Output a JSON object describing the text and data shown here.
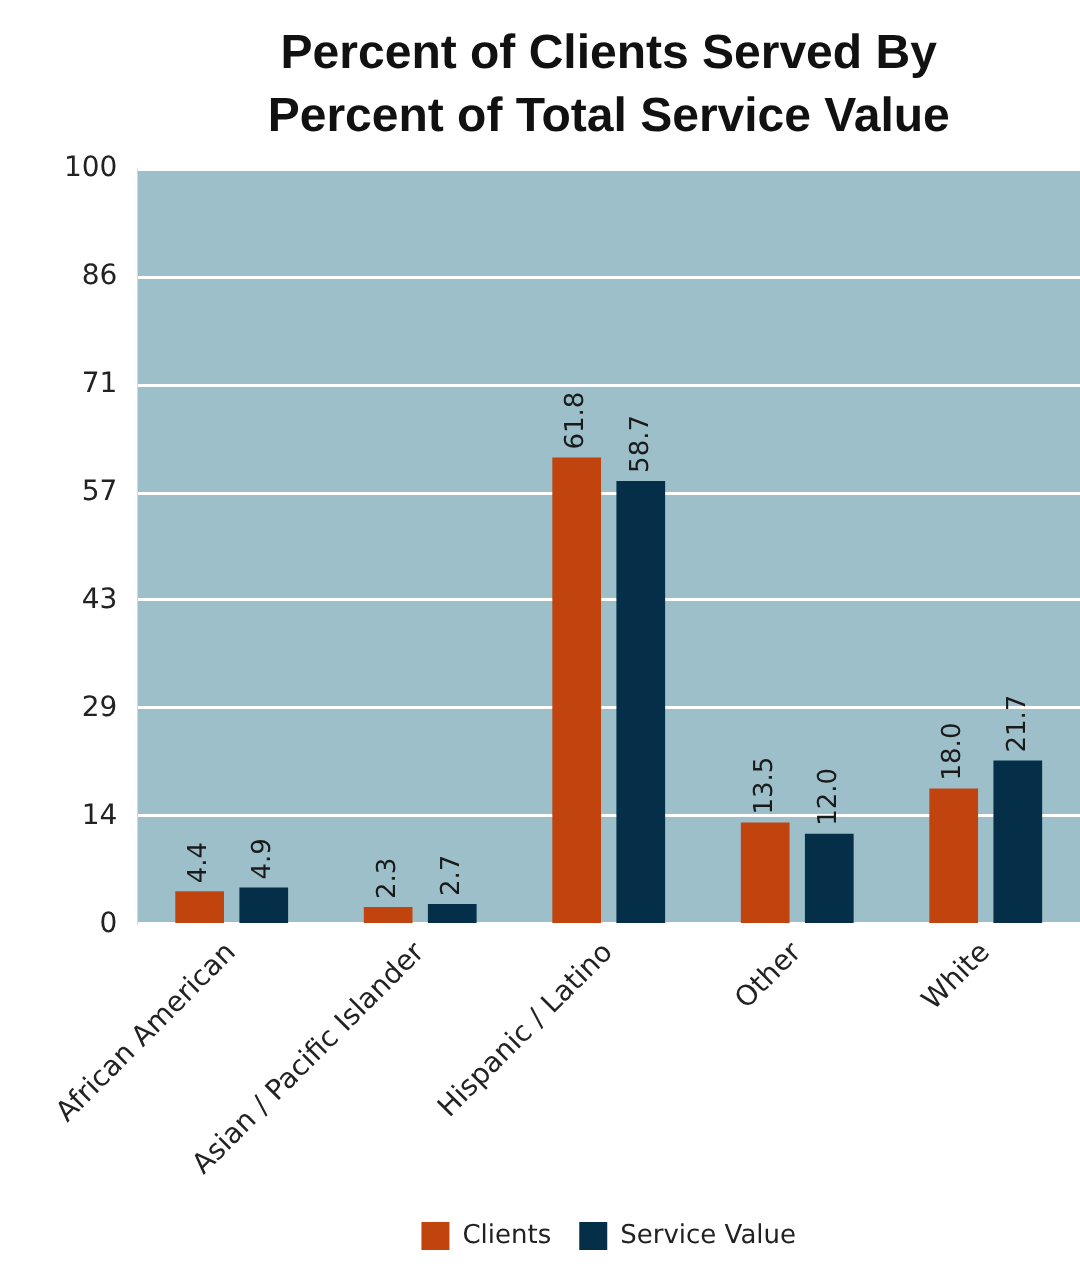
{
  "chart_data": {
    "type": "bar",
    "title": "Percent of Clients Served By Percent of Total Service Value",
    "categories": [
      "African American",
      "Asian / Pacific Islander",
      "Hispanic / Latino",
      "Other",
      "White"
    ],
    "series": [
      {
        "name": "Clients",
        "color": "#c1440e",
        "values": [
          4.4,
          2.3,
          61.8,
          13.5,
          18.0
        ],
        "value_labels": [
          "4.4",
          "2.3",
          "61.8",
          "13.5",
          "18.0"
        ]
      },
      {
        "name": "Service Value",
        "color": "#052f48",
        "values": [
          4.9,
          2.7,
          58.7,
          12.0,
          21.7
        ],
        "value_labels": [
          "4.9",
          "2.7",
          "58.7",
          "12.0",
          "21.7"
        ]
      }
    ],
    "ylim": [
      0,
      100
    ],
    "yticks": [
      0,
      {
        "value": 14.3,
        "label": "14"
      },
      {
        "value": 28.6,
        "label": "29"
      },
      {
        "value": 42.9,
        "label": "43"
      },
      {
        "value": 57.1,
        "label": "57"
      },
      {
        "value": 71.4,
        "label": "71"
      },
      {
        "value": 85.7,
        "label": "86"
      },
      100
    ],
    "grid": "y",
    "legend": "bottom"
  }
}
